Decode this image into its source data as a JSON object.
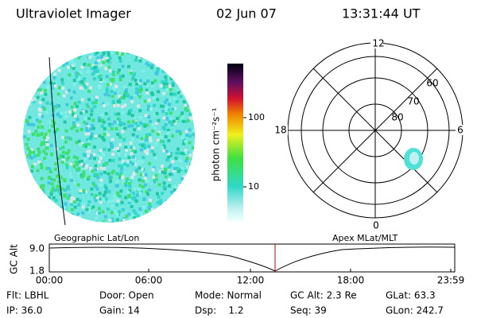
{
  "header": {
    "title": "Ultraviolet Imager",
    "date": "02 Jun 07",
    "time": "13:31:44 UT"
  },
  "colorbar": {
    "label": "photon cm⁻²s⁻¹",
    "ticks": [
      "100",
      "10"
    ]
  },
  "polar": {
    "mlt_labels": [
      "12",
      "18",
      "6",
      "0"
    ],
    "lat_labels": [
      "60",
      "70",
      "80"
    ]
  },
  "orbit": {
    "left_label": "Geographic Lat/Lon",
    "right_label": "Apex MLat/MLT",
    "axis_label": "GC Alt",
    "y_ticks": [
      "9.0",
      "1.8"
    ],
    "x_ticks": [
      "00:00",
      "06:00",
      "12:00",
      "18:00",
      "23:59"
    ]
  },
  "status": [
    [
      "Flt: LBHL",
      "Door: Open",
      "Mode: Normal",
      "GC Alt: 2.3 Re",
      "GLat: 63.3"
    ],
    [
      "IP: 36.0",
      "Gain: 14",
      "Dsp:    1.2",
      "Seq: 39",
      "GLon: 242.7"
    ]
  ]
}
